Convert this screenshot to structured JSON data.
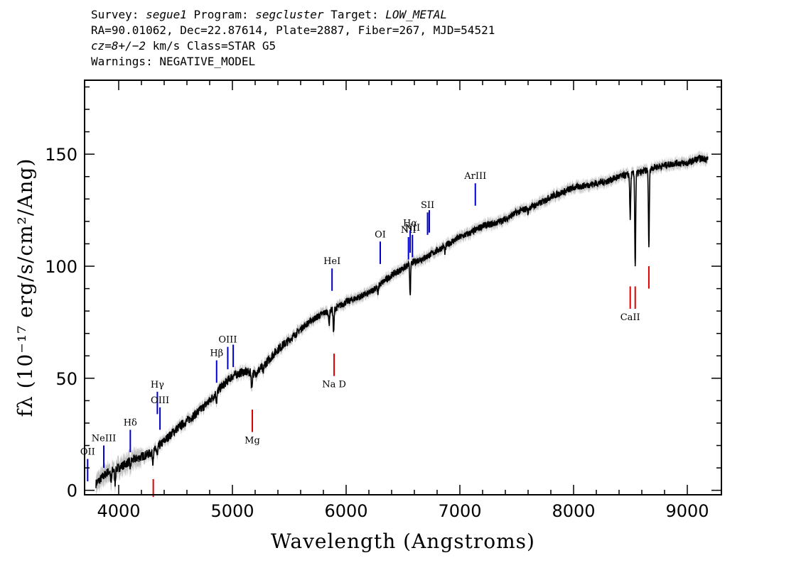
{
  "header": {
    "survey_label": "Survey:",
    "survey": "segue1",
    "program_label": "Program:",
    "program": "segcluster",
    "target_label": "Target:",
    "target": "LOW_METAL",
    "line2": "RA=90.01062, Dec=22.87614, Plate=2887, Fiber=267, MJD=54521",
    "cz": "cz=8+/−2",
    "cz_rest": " km/s Class=STAR G5",
    "warnings": "Warnings: NEGATIVE_MODEL"
  },
  "chart_data": {
    "type": "line",
    "xlabel": "Wavelength (Angstroms)",
    "ylabel": "fλ (10⁻¹⁷ erg/s/cm²/Ang)",
    "xlim": [
      3700,
      9300
    ],
    "ylim": [
      -2,
      183
    ],
    "xticks": [
      4000,
      5000,
      6000,
      7000,
      8000,
      9000
    ],
    "yticks": [
      0,
      50,
      100,
      150
    ],
    "grid": false,
    "colors": {
      "spectrum": "#000000",
      "error": "#b0b0b0",
      "emission": "#0000cc",
      "absorption": "#dd0000"
    },
    "series": [
      {
        "x": [
          3800,
          3900,
          4000,
          4100,
          4200,
          4300,
          4400,
          4500,
          4600,
          4700,
          4800,
          4900,
          5000,
          5100,
          5200,
          5300,
          5400,
          5500,
          5600,
          5700,
          5800,
          5900,
          6000,
          6100,
          6200,
          6300,
          6400,
          6500,
          6600,
          6700,
          6800,
          6900,
          7000,
          7100,
          7200,
          7300,
          7400,
          7500,
          7600,
          7700,
          7800,
          7900,
          8000,
          8100,
          8200,
          8300,
          8400,
          8500,
          8600,
          8700,
          8800,
          8900,
          9000,
          9100,
          9180
        ],
        "y": [
          3,
          8,
          10,
          13,
          15,
          17,
          22,
          27,
          31,
          35,
          40,
          46,
          51,
          53,
          52,
          57,
          63,
          67,
          72,
          76,
          79,
          81,
          84,
          86,
          88,
          92,
          96,
          99,
          102,
          104,
          107,
          110,
          113,
          115,
          118,
          119,
          121,
          124,
          126,
          128,
          131,
          133,
          135,
          136,
          137,
          138,
          140,
          141,
          142,
          144,
          145,
          146,
          146,
          148,
          148
        ]
      }
    ],
    "absorption_features": [
      {
        "x": 3933,
        "depth": 6
      },
      {
        "x": 3968,
        "depth": 6
      },
      {
        "x": 4102,
        "depth": 3
      },
      {
        "x": 4300,
        "depth": 4
      },
      {
        "x": 4340,
        "depth": 4
      },
      {
        "x": 4861,
        "depth": 4
      },
      {
        "x": 5170,
        "depth": 7
      },
      {
        "x": 5270,
        "depth": 4
      },
      {
        "x": 5890,
        "depth": 11
      },
      {
        "x": 5850,
        "depth": 6
      },
      {
        "x": 6280,
        "depth": 4
      },
      {
        "x": 6563,
        "depth": 13
      },
      {
        "x": 6870,
        "depth": 3
      },
      {
        "x": 7600,
        "depth": 2
      },
      {
        "x": 8498,
        "depth": 20
      },
      {
        "x": 8542,
        "depth": 42
      },
      {
        "x": 8662,
        "depth": 35
      }
    ],
    "line_markers": [
      {
        "label": "OII",
        "x": 3727,
        "y1": 4,
        "y2": 14,
        "kind": "emission"
      },
      {
        "label": "NeIII",
        "x": 3869,
        "y1": 10,
        "y2": 20,
        "kind": "emission"
      },
      {
        "label": "Hδ",
        "x": 4102,
        "y1": 17,
        "y2": 27,
        "kind": "emission"
      },
      {
        "label": "Hγ",
        "x": 4340,
        "y1": 34,
        "y2": 44,
        "kind": "emission"
      },
      {
        "label": "OIII",
        "x": 4363,
        "y1": 27,
        "y2": 37,
        "kind": "emission"
      },
      {
        "label": "Hβ",
        "x": 4861,
        "y1": 48,
        "y2": 58,
        "kind": "emission"
      },
      {
        "label": "OIII",
        "x": 4959,
        "y1": 54,
        "y2": 64,
        "kind": "emission"
      },
      {
        "label": "",
        "x": 5007,
        "y1": 55,
        "y2": 65,
        "kind": "emission"
      },
      {
        "label": "HeI",
        "x": 5876,
        "y1": 89,
        "y2": 99,
        "kind": "emission"
      },
      {
        "label": "OI",
        "x": 6300,
        "y1": 101,
        "y2": 111,
        "kind": "emission"
      },
      {
        "label": "NII",
        "x": 6548,
        "y1": 103,
        "y2": 113,
        "kind": "emission"
      },
      {
        "label": "Hα",
        "x": 6563,
        "y1": 106,
        "y2": 116,
        "kind": "emission"
      },
      {
        "label": "NII",
        "x": 6583,
        "y1": 104,
        "y2": 114,
        "kind": "emission"
      },
      {
        "label": "SII",
        "x": 6716,
        "y1": 114,
        "y2": 124,
        "kind": "emission"
      },
      {
        "label": "",
        "x": 6731,
        "y1": 115,
        "y2": 125,
        "kind": "emission"
      },
      {
        "label": "ArIII",
        "x": 7136,
        "y1": 127,
        "y2": 137,
        "kind": "emission"
      },
      {
        "label": "",
        "x": 4304,
        "y1": -3,
        "y2": 5,
        "kind": "absorption"
      },
      {
        "label": "Mg",
        "x": 5175,
        "y1": 26,
        "y2": 36,
        "kind": "absorption"
      },
      {
        "label": "Na D",
        "x": 5894,
        "y1": 51,
        "y2": 61,
        "kind": "absorption"
      },
      {
        "label": "CaII",
        "x": 8498,
        "y1": 81,
        "y2": 91,
        "kind": "absorption"
      },
      {
        "label": "",
        "x": 8542,
        "y1": 81,
        "y2": 91,
        "kind": "absorption"
      },
      {
        "label": "",
        "x": 8662,
        "y1": 90,
        "y2": 100,
        "kind": "absorption"
      }
    ]
  }
}
